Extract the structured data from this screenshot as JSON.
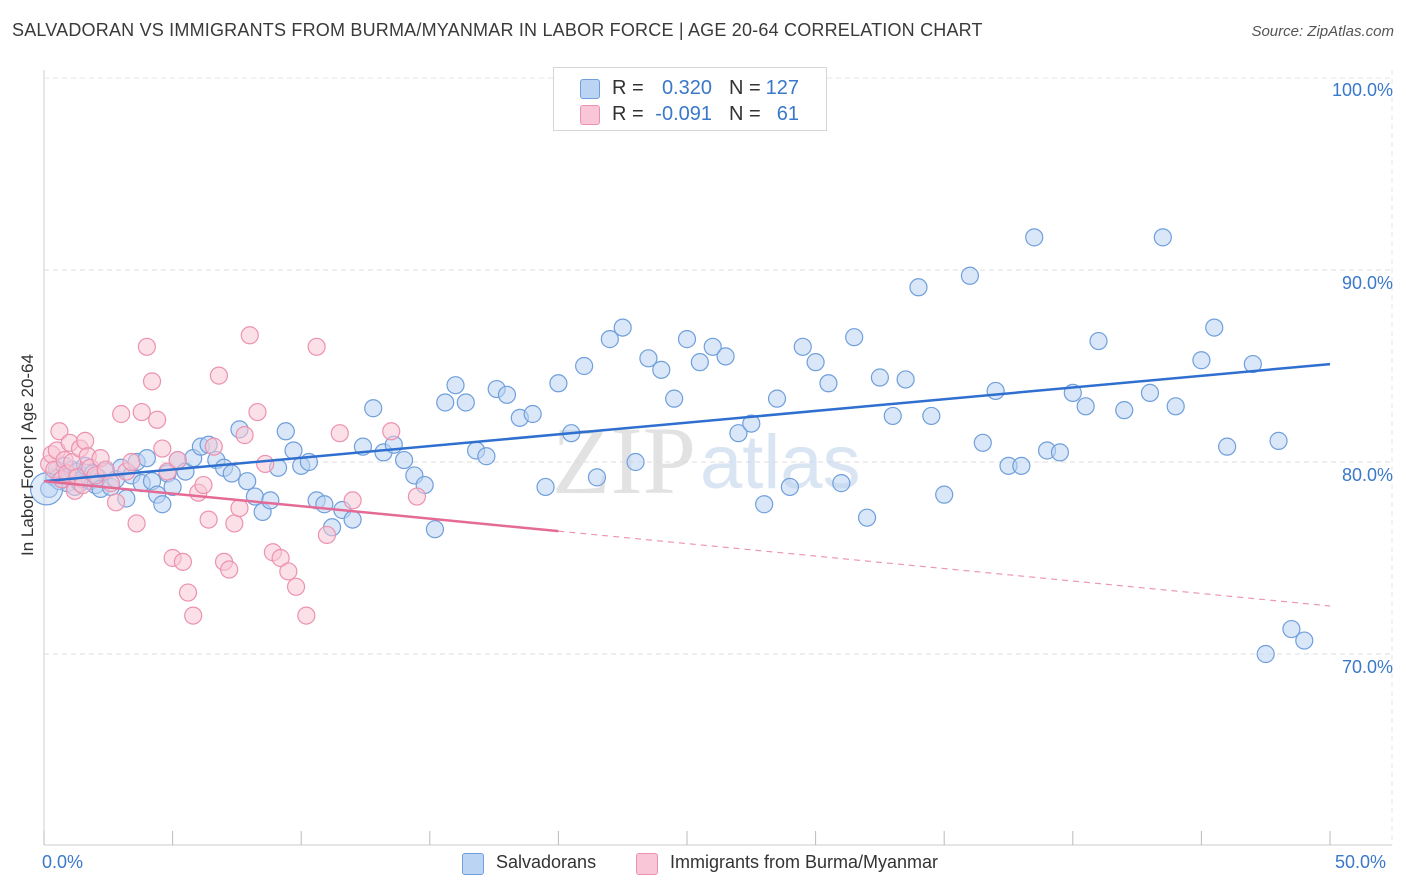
{
  "header": {
    "title": "SALVADORAN VS IMMIGRANTS FROM BURMA/MYANMAR IN LABOR FORCE | AGE 20-64 CORRELATION CHART",
    "source": "Source: ZipAtlas.com"
  },
  "legend": {
    "rows": [
      {
        "r_label": "R =",
        "r_value": "0.320",
        "n_label": "N =",
        "n_value": "127"
      },
      {
        "r_label": "R =",
        "r_value": "-0.091",
        "n_label": "N =",
        "n_value": "61"
      }
    ],
    "bottom": [
      "Salvadorans",
      "Immigrants from Burma/Myanmar"
    ]
  },
  "axis": {
    "ylabel": "In Labor Force | Age 20-64",
    "x_min_label": "0.0%",
    "x_max_label": "50.0%",
    "y_tick_labels": [
      "100.0%",
      "90.0%",
      "80.0%",
      "70.0%"
    ]
  },
  "watermark": {
    "zip": "ZIP",
    "atlas": "atlas"
  },
  "colors": {
    "blue_fill": "#bcd4f3",
    "blue_stroke": "#6f9fdc",
    "blue_line": "#2f6fcf",
    "pink_fill": "#f8c6d6",
    "pink_stroke": "#ec92b0",
    "pink_line": "#e46b95",
    "tick_text": "#3a78c9",
    "grid": "#dddddd"
  },
  "chart_data": {
    "type": "scatter",
    "xlabel": "",
    "ylabel": "In Labor Force | Age 20-64",
    "xlim": [
      0,
      50
    ],
    "ylim": [
      60.2,
      102
    ],
    "x_tick_labels": [
      "0.0%",
      "50.0%"
    ],
    "y_ticks": [
      100,
      90,
      80,
      70
    ],
    "grid": true,
    "series": [
      {
        "name": "Salvadorans",
        "r": 0.32,
        "n": 127,
        "trend": {
          "x": [
            0,
            50
          ],
          "y": [
            79.0,
            85.1
          ],
          "dashed_from": null
        },
        "points": [
          [
            0.2,
            78.6
          ],
          [
            0.4,
            79.2
          ],
          [
            0.5,
            79.6
          ],
          [
            0.6,
            79.0
          ],
          [
            0.8,
            79.8
          ],
          [
            0.9,
            78.9
          ],
          [
            1.0,
            79.3
          ],
          [
            1.1,
            79.6
          ],
          [
            1.2,
            78.7
          ],
          [
            1.3,
            79.5
          ],
          [
            1.4,
            78.9
          ],
          [
            1.5,
            79.1
          ],
          [
            1.6,
            79.8
          ],
          [
            1.8,
            79.0
          ],
          [
            1.9,
            79.4
          ],
          [
            2.0,
            78.8
          ],
          [
            2.1,
            79.2
          ],
          [
            2.2,
            78.6
          ],
          [
            2.4,
            79.5
          ],
          [
            2.6,
            78.7
          ],
          [
            2.8,
            79.1
          ],
          [
            3.0,
            79.7
          ],
          [
            3.2,
            78.1
          ],
          [
            3.4,
            79.3
          ],
          [
            3.6,
            80.0
          ],
          [
            3.8,
            78.9
          ],
          [
            4.0,
            80.2
          ],
          [
            4.2,
            79.0
          ],
          [
            4.4,
            78.3
          ],
          [
            4.6,
            77.8
          ],
          [
            4.8,
            79.4
          ],
          [
            5.0,
            78.7
          ],
          [
            5.2,
            80.1
          ],
          [
            5.5,
            79.5
          ],
          [
            5.8,
            80.2
          ],
          [
            6.1,
            80.8
          ],
          [
            6.4,
            80.9
          ],
          [
            6.7,
            80.1
          ],
          [
            7.0,
            79.7
          ],
          [
            7.3,
            79.4
          ],
          [
            7.6,
            81.7
          ],
          [
            7.9,
            79.0
          ],
          [
            8.2,
            78.2
          ],
          [
            8.5,
            77.4
          ],
          [
            8.8,
            78.0
          ],
          [
            9.1,
            79.7
          ],
          [
            9.4,
            81.6
          ],
          [
            9.7,
            80.6
          ],
          [
            10.0,
            79.8
          ],
          [
            10.3,
            80.0
          ],
          [
            10.6,
            78.0
          ],
          [
            10.9,
            77.8
          ],
          [
            11.2,
            76.6
          ],
          [
            11.6,
            77.5
          ],
          [
            12.0,
            77.0
          ],
          [
            12.4,
            80.8
          ],
          [
            12.8,
            82.8
          ],
          [
            13.2,
            80.5
          ],
          [
            13.6,
            80.9
          ],
          [
            14.0,
            80.1
          ],
          [
            14.4,
            79.3
          ],
          [
            14.8,
            78.8
          ],
          [
            15.2,
            76.5
          ],
          [
            15.6,
            83.1
          ],
          [
            16.0,
            84.0
          ],
          [
            16.4,
            83.1
          ],
          [
            16.8,
            80.6
          ],
          [
            17.2,
            80.3
          ],
          [
            17.6,
            83.8
          ],
          [
            18.0,
            83.5
          ],
          [
            18.5,
            82.3
          ],
          [
            19.0,
            82.5
          ],
          [
            19.5,
            78.7
          ],
          [
            20.0,
            84.1
          ],
          [
            20.5,
            81.5
          ],
          [
            21.0,
            85.0
          ],
          [
            21.5,
            79.2
          ],
          [
            22.0,
            86.4
          ],
          [
            22.5,
            87.0
          ],
          [
            23.0,
            80.0
          ],
          [
            23.5,
            85.4
          ],
          [
            24.0,
            84.8
          ],
          [
            24.5,
            83.3
          ],
          [
            25.0,
            86.4
          ],
          [
            25.5,
            85.2
          ],
          [
            26.0,
            86.0
          ],
          [
            26.5,
            85.5
          ],
          [
            27.0,
            81.5
          ],
          [
            27.5,
            82.0
          ],
          [
            28.0,
            77.8
          ],
          [
            28.5,
            83.3
          ],
          [
            29.0,
            78.7
          ],
          [
            29.5,
            86.0
          ],
          [
            30.0,
            85.2
          ],
          [
            30.5,
            84.1
          ],
          [
            31.0,
            78.9
          ],
          [
            31.5,
            86.5
          ],
          [
            32.0,
            77.1
          ],
          [
            32.5,
            84.4
          ],
          [
            33.0,
            82.4
          ],
          [
            33.5,
            84.3
          ],
          [
            34.0,
            89.1
          ],
          [
            34.5,
            82.4
          ],
          [
            35.0,
            78.3
          ],
          [
            36.0,
            89.7
          ],
          [
            36.5,
            81.0
          ],
          [
            37.0,
            83.7
          ],
          [
            37.5,
            79.8
          ],
          [
            38.0,
            79.8
          ],
          [
            38.5,
            91.7
          ],
          [
            39.0,
            80.6
          ],
          [
            39.5,
            80.5
          ],
          [
            40.0,
            83.6
          ],
          [
            40.5,
            82.9
          ],
          [
            41.0,
            86.3
          ],
          [
            42.0,
            82.7
          ],
          [
            43.0,
            83.6
          ],
          [
            44.0,
            82.9
          ],
          [
            45.0,
            85.3
          ],
          [
            46.0,
            80.8
          ],
          [
            47.5,
            70.0
          ],
          [
            48.5,
            71.3
          ],
          [
            49.0,
            70.7
          ],
          [
            43.5,
            91.7
          ],
          [
            45.5,
            87.0
          ],
          [
            47.0,
            85.1
          ],
          [
            48.0,
            81.1
          ]
        ]
      },
      {
        "name": "Immigrants from Burma/Myanmar",
        "r": -0.091,
        "n": 61,
        "trend": {
          "x": [
            0,
            50
          ],
          "y": [
            79.0,
            72.5
          ],
          "dashed_from": 20
        },
        "points": [
          [
            0.2,
            79.9
          ],
          [
            0.3,
            80.4
          ],
          [
            0.4,
            79.6
          ],
          [
            0.5,
            80.6
          ],
          [
            0.6,
            81.6
          ],
          [
            0.7,
            79.1
          ],
          [
            0.8,
            80.1
          ],
          [
            0.9,
            79.4
          ],
          [
            1.0,
            81.0
          ],
          [
            1.1,
            80.0
          ],
          [
            1.2,
            78.5
          ],
          [
            1.3,
            79.2
          ],
          [
            1.4,
            80.7
          ],
          [
            1.5,
            78.8
          ],
          [
            1.6,
            81.1
          ],
          [
            1.7,
            80.3
          ],
          [
            1.8,
            79.7
          ],
          [
            2.0,
            79.3
          ],
          [
            2.2,
            80.2
          ],
          [
            2.4,
            79.6
          ],
          [
            2.6,
            78.9
          ],
          [
            2.8,
            77.9
          ],
          [
            3.0,
            82.5
          ],
          [
            3.2,
            79.5
          ],
          [
            3.4,
            80.0
          ],
          [
            3.6,
            76.8
          ],
          [
            3.8,
            82.6
          ],
          [
            4.0,
            86.0
          ],
          [
            4.2,
            84.2
          ],
          [
            4.4,
            82.2
          ],
          [
            4.6,
            80.7
          ],
          [
            4.8,
            79.5
          ],
          [
            5.0,
            75.0
          ],
          [
            5.2,
            80.1
          ],
          [
            5.4,
            74.8
          ],
          [
            5.6,
            73.2
          ],
          [
            5.8,
            72.0
          ],
          [
            6.0,
            78.4
          ],
          [
            6.2,
            78.8
          ],
          [
            6.4,
            77.0
          ],
          [
            6.6,
            80.8
          ],
          [
            6.8,
            84.5
          ],
          [
            7.0,
            74.8
          ],
          [
            7.2,
            74.4
          ],
          [
            7.4,
            76.8
          ],
          [
            7.6,
            77.6
          ],
          [
            7.8,
            81.4
          ],
          [
            8.0,
            86.6
          ],
          [
            8.3,
            82.6
          ],
          [
            8.6,
            79.9
          ],
          [
            8.9,
            75.3
          ],
          [
            9.2,
            75.0
          ],
          [
            9.5,
            74.3
          ],
          [
            9.8,
            73.5
          ],
          [
            10.2,
            72.0
          ],
          [
            10.6,
            86.0
          ],
          [
            11.0,
            76.2
          ],
          [
            11.5,
            81.5
          ],
          [
            12.0,
            78.0
          ],
          [
            13.5,
            81.6
          ],
          [
            14.5,
            78.2
          ]
        ]
      }
    ]
  }
}
